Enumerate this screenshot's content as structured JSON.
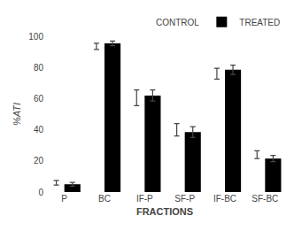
{
  "chart_data": {
    "type": "bar",
    "categories": [
      "P",
      "BC",
      "IF-P",
      "SF-P",
      "IF-BC",
      "SF-BC"
    ],
    "series": [
      {
        "name": "CONTROL",
        "color": "#ffffff",
        "values": [
          6.0,
          93.5,
          60.5,
          40.0,
          76.0,
          24.0
        ],
        "errors": [
          1.5,
          2.0,
          5.0,
          4.0,
          3.5,
          2.5
        ]
      },
      {
        "name": "TREATED",
        "color": "#000000",
        "values": [
          5.0,
          95.5,
          62.0,
          38.5,
          78.5,
          21.5
        ],
        "errors": [
          1.2,
          1.5,
          3.5,
          3.5,
          3.0,
          2.0
        ]
      }
    ],
    "xlabel": "FRACTIONS",
    "ylabel": "%ATI",
    "ylim": [
      0,
      100
    ],
    "yticks": [
      0,
      20,
      40,
      60,
      80,
      100
    ],
    "grid": false,
    "legend": "upper right"
  }
}
